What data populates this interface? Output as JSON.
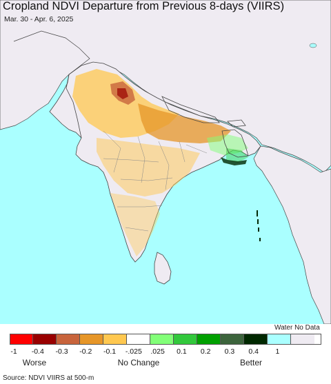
{
  "header": {
    "title": "Cropland NDVI Departure from Previous 8-days (VIIRS)",
    "date_range": "Mar. 30 - Apr. 6, 2025"
  },
  "map": {
    "colors": {
      "ocean": "#aaffff",
      "land": "#efebf2",
      "border": "#444444",
      "state_border": "#888888"
    }
  },
  "legend": {
    "water_no_data_label": "Water No Data",
    "colors": [
      "#ff0000",
      "#990000",
      "#c8643c",
      "#e69628",
      "#ffc850",
      "#ffffff",
      "#82ff78",
      "#32c83c",
      "#00a000",
      "#3c643c",
      "#002800",
      "#aaffff",
      "#efebf2"
    ],
    "tick_labels": [
      "-1",
      "-0.4",
      "-0.3",
      "-0.2",
      "-0.1",
      "-.025",
      ".025",
      "0.1",
      "0.2",
      "0.3",
      "0.4",
      "1"
    ],
    "category_labels": {
      "worse": "Worse",
      "no_change": "No Change",
      "better": "Better"
    }
  },
  "footer": {
    "source": "Source: NDVI VIIRS at 500-m"
  }
}
